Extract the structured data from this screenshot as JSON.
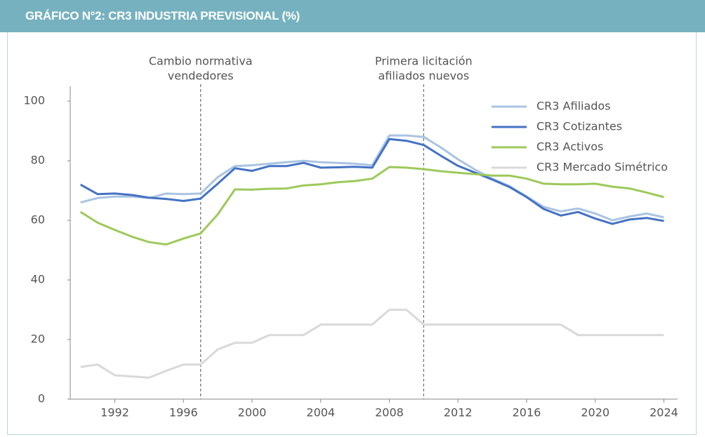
{
  "chart_data": {
    "type": "line",
    "title": "GRÁFICO N°2: CR3 INDUSTRIA PREVISIONAL (%)",
    "x": [
      1990,
      1991,
      1992,
      1993,
      1994,
      1995,
      1996,
      1997,
      1998,
      1999,
      2000,
      2001,
      2002,
      2003,
      2004,
      2005,
      2006,
      2007,
      2008,
      2009,
      2010,
      2011,
      2012,
      2013,
      2014,
      2015,
      2016,
      2017,
      2018,
      2019,
      2020,
      2021,
      2022,
      2023,
      2024
    ],
    "series": [
      {
        "name": "CR3 Afiliados",
        "color": "#a9c4e2",
        "values": [
          66,
          67.5,
          68,
          68,
          67.5,
          69,
          68.8,
          69,
          74.5,
          78.2,
          78.5,
          79,
          79.5,
          80,
          79.5,
          79.3,
          79,
          78.5,
          88.5,
          88.5,
          88,
          84.5,
          80.5,
          77,
          74,
          71.5,
          68,
          64.5,
          63,
          64,
          62.3,
          60,
          61.3,
          62.3,
          61
        ]
      },
      {
        "name": "CR3 Cotizantes",
        "color": "#4472c4",
        "values": [
          72,
          68.8,
          69,
          68.5,
          67.6,
          67.2,
          66.5,
          67.3,
          72.3,
          77.5,
          76.6,
          78.2,
          78.2,
          79.3,
          77.7,
          77.8,
          78,
          77.7,
          87.3,
          86.7,
          85.3,
          81.7,
          78.3,
          76,
          73.7,
          71.2,
          67.8,
          63.8,
          61.6,
          62.8,
          60.6,
          58.8,
          60.3,
          60.8,
          59.8
        ]
      },
      {
        "name": "CR3 Activos",
        "color": "#9dc95a",
        "values": [
          62.8,
          59.2,
          56.8,
          54.5,
          52.7,
          51.9,
          53.9,
          55.6,
          62,
          70.4,
          70.3,
          70.6,
          70.7,
          71.7,
          72.1,
          72.8,
          73.2,
          74,
          77.9,
          77.7,
          77.2,
          76.5,
          76,
          75.5,
          75,
          75,
          74,
          72.3,
          72.1,
          72.1,
          72.3,
          71.3,
          70.7,
          69.3,
          67.8
        ]
      },
      {
        "name": "CR3 Mercado Simétrico",
        "color": "#d9d9d9",
        "values": [
          10.8,
          11.6,
          8,
          7.6,
          7.2,
          9.5,
          11.6,
          11.6,
          16.7,
          18.9,
          18.9,
          21.5,
          21.5,
          21.5,
          25,
          25,
          25,
          25,
          30,
          30,
          25,
          25,
          25,
          25,
          25,
          25,
          25,
          25,
          25,
          21.5,
          21.5,
          21.5,
          21.5,
          21.5,
          21.5
        ]
      }
    ],
    "xlim": [
      1989.4,
      2024.8
    ],
    "xticks": [
      1992,
      1996,
      2000,
      2004,
      2008,
      2012,
      2016,
      2020,
      2024
    ],
    "ylim": [
      0,
      105
    ],
    "yticks": [
      0,
      20,
      40,
      60,
      80,
      100
    ],
    "grid": false,
    "legend": "upper right",
    "annotations": [
      {
        "x": 1997,
        "text": [
          "Cambio normativa",
          "vendedores"
        ]
      },
      {
        "x": 2010,
        "text": [
          "Primera licitación",
          "afiliados nuevos"
        ]
      }
    ]
  }
}
